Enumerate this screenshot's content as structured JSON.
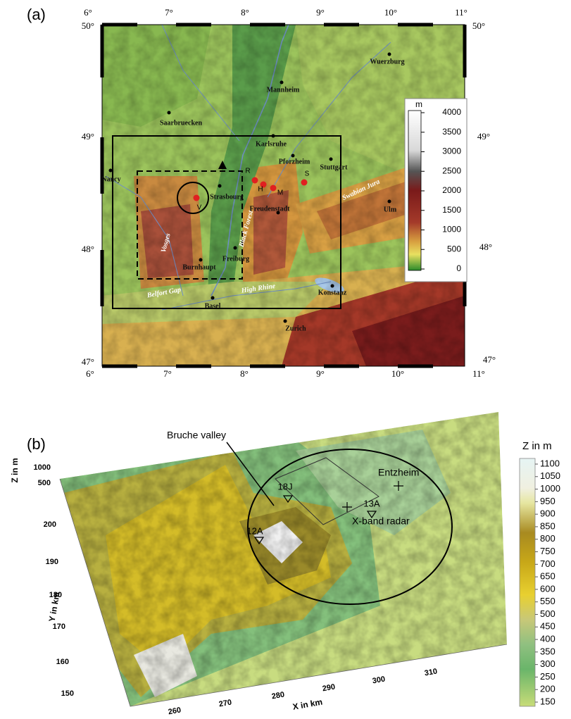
{
  "panel_a": {
    "label": "(a)",
    "lon_ticks": [
      "6°",
      "7°",
      "8°",
      "9°",
      "10°",
      "11°"
    ],
    "lat_ticks": [
      "50°",
      "49°",
      "48°",
      "47°"
    ],
    "cities": [
      "Wuerzburg",
      "Mannheim",
      "Saarbruecken",
      "Karlsruhe",
      "Pforzheim",
      "Stuttgart",
      "Nancy",
      "Strasbourg",
      "Freudenstadt",
      "Ulm",
      "Freiburg",
      "Burnhaupt",
      "Basel",
      "Konstanz",
      "Zurich"
    ],
    "sites": [
      "R",
      "H",
      "M",
      "S",
      "V"
    ],
    "regions": [
      "Vosges",
      "Black Forest",
      "Swabian Jura",
      "Belfort Gap",
      "High Rhine"
    ],
    "colorbar": {
      "title": "m",
      "ticks": [
        "4000",
        "3500",
        "3000",
        "2500",
        "2000",
        "1500",
        "1000",
        "500",
        "0"
      ]
    }
  },
  "panel_b": {
    "label": "(b)",
    "annotations": [
      "Bruche valley",
      "Entzheim",
      "X-band radar"
    ],
    "sites": [
      "18J",
      "13A",
      "12A"
    ],
    "z_label": "Z in m",
    "z_ticks": [
      "1000",
      "500"
    ],
    "y_label": "Y in km",
    "y_ticks": [
      "200",
      "190",
      "180",
      "170",
      "160",
      "150"
    ],
    "x_label": "X in km",
    "x_ticks": [
      "260",
      "270",
      "280",
      "290",
      "300",
      "310"
    ],
    "colorbar": {
      "title": "Z in m",
      "ticks": [
        "1100",
        "1050",
        "1000",
        "950",
        "900",
        "850",
        "800",
        "750",
        "700",
        "650",
        "600",
        "550",
        "500",
        "450",
        "400",
        "350",
        "300",
        "250",
        "200",
        "150"
      ]
    }
  }
}
